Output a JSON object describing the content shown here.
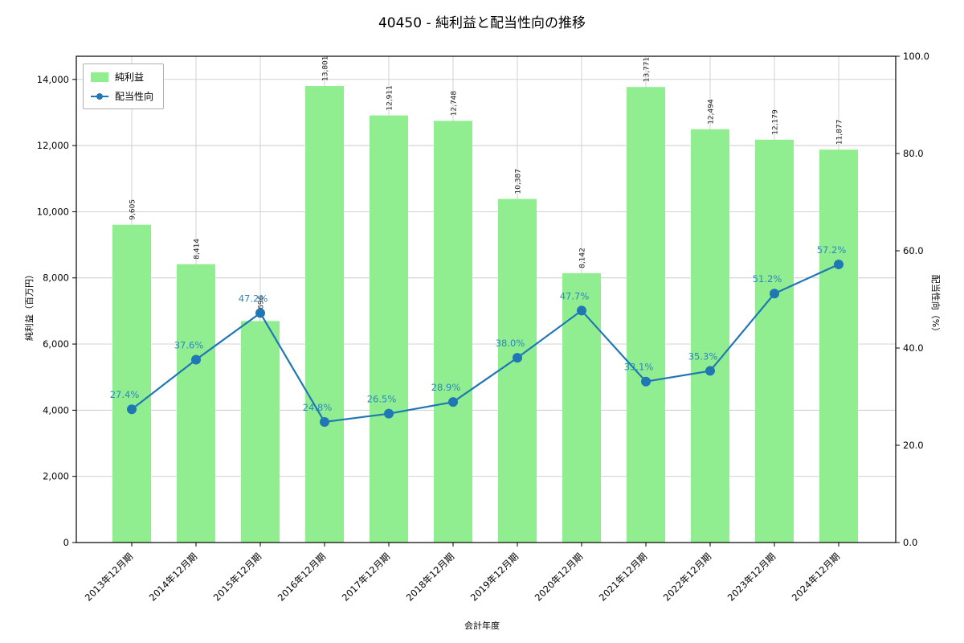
{
  "chart_data": {
    "type": "bar",
    "title": "40450 - 純利益と配当性向の推移",
    "xlabel": "会計年度",
    "ylabel_left": "純利益（百万円）",
    "ylabel_right": "配当性向（%）",
    "categories": [
      "2013年12月期",
      "2014年12月期",
      "2015年12月期",
      "2016年12月期",
      "2017年12月期",
      "2018年12月期",
      "2019年12月期",
      "2020年12月期",
      "2021年12月期",
      "2022年12月期",
      "2023年12月期",
      "2024年12月期"
    ],
    "series": [
      {
        "name": "純利益",
        "type": "bar",
        "axis": "left",
        "values": [
          9605,
          8414,
          6696,
          13801,
          12911,
          12748,
          10387,
          8142,
          13771,
          12494,
          12179,
          11877
        ]
      },
      {
        "name": "配当性向",
        "type": "line",
        "axis": "right",
        "values": [
          27.4,
          37.6,
          47.2,
          24.8,
          26.5,
          28.9,
          38.0,
          47.7,
          33.1,
          35.3,
          51.2,
          57.2
        ]
      }
    ],
    "y_left": {
      "min": 0,
      "max": 14700,
      "ticks": [
        0,
        2000,
        4000,
        6000,
        8000,
        10000,
        12000,
        14000
      ]
    },
    "y_right": {
      "min": 0,
      "max": 100,
      "ticks": [
        0,
        20,
        40,
        60,
        80,
        100
      ]
    },
    "grid": true,
    "legend_position": "upper-left",
    "colors": {
      "bar": "#90ee90",
      "line": "#1f77b4",
      "pct_label": "#2e86c1",
      "bar_label": "#1a1a1a",
      "grid": "#cccccc",
      "spine": "#000000"
    }
  }
}
